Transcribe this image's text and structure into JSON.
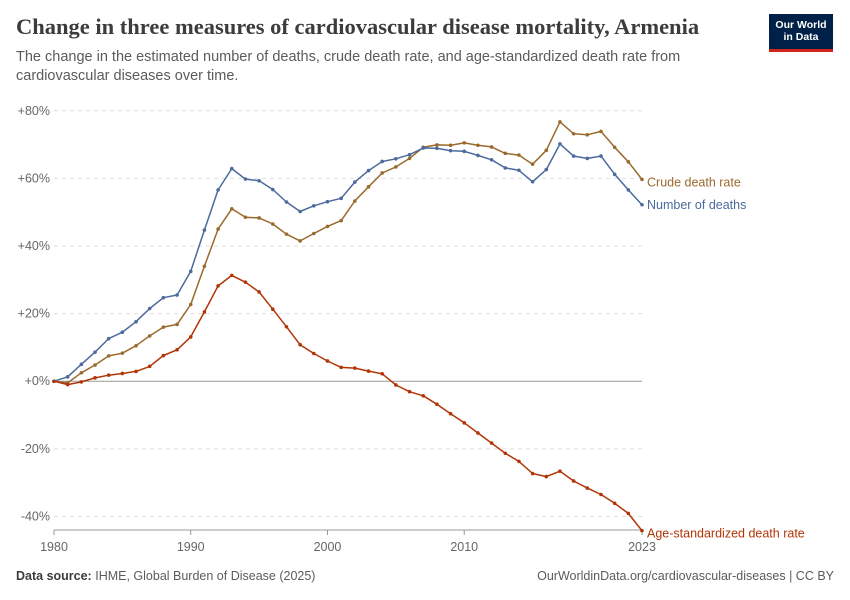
{
  "header": {
    "title": "Change in three measures of cardiovascular disease mortality, Armenia",
    "subtitle": "The change in the estimated number of deaths, crude death rate, and age-standardized death rate from cardiovascular diseases over time.",
    "logo_line1": "Our World",
    "logo_line2": "in Data"
  },
  "footer": {
    "source_label": "Data source:",
    "source_text": "IHME, Global Burden of Disease (2025)",
    "url_text": "OurWorldinData.org/cardiovascular-diseases | CC BY"
  },
  "colors": {
    "crude": "#9a6a2d",
    "deaths": "#4c6a9c",
    "age": "#b13507",
    "brand_bg": "#002147",
    "brand_accent": "#ce261e"
  },
  "chart_data": {
    "type": "line",
    "x": [
      1980,
      1981,
      1982,
      1983,
      1984,
      1985,
      1986,
      1987,
      1988,
      1989,
      1990,
      1991,
      1992,
      1993,
      1994,
      1995,
      1996,
      1997,
      1998,
      1999,
      2000,
      2001,
      2002,
      2003,
      2004,
      2005,
      2006,
      2007,
      2008,
      2009,
      2010,
      2011,
      2012,
      2013,
      2014,
      2015,
      2016,
      2017,
      2018,
      2019,
      2020,
      2021,
      2022,
      2023
    ],
    "x_ticks": [
      "1980",
      "1990",
      "2000",
      "2010",
      "2023"
    ],
    "y_ticks": [
      "+80%",
      "+60%",
      "+40%",
      "+20%",
      "+0%",
      "-20%",
      "-40%"
    ],
    "y_tick_values": [
      80,
      60,
      40,
      20,
      0,
      -20,
      -40
    ],
    "ylim": [
      -44,
      82
    ],
    "grid": true,
    "series": [
      {
        "name": "Crude death rate",
        "color": "#9a6a2d",
        "values": [
          0,
          -0.5,
          2.5,
          4.8,
          7.5,
          8.3,
          10.5,
          13.4,
          16,
          16.8,
          22.7,
          34,
          45,
          51,
          48.5,
          48.3,
          46.5,
          43.5,
          41.5,
          43.7,
          45.8,
          47.5,
          53.3,
          57.5,
          61.6,
          63.4,
          65.9,
          69.2,
          69.9,
          69.8,
          70.5,
          69.8,
          69.3,
          67.4,
          66.9,
          64.2,
          68.3,
          76.7,
          73.2,
          72.9,
          73.9,
          69.2,
          64.9,
          59.7
        ]
      },
      {
        "name": "Number of deaths",
        "color": "#4c6a9c",
        "values": [
          0,
          1.3,
          5,
          8.6,
          12.6,
          14.5,
          17.6,
          21.5,
          24.7,
          25.5,
          32.5,
          44.7,
          56.6,
          62.9,
          59.8,
          59.3,
          56.7,
          53,
          50.2,
          51.9,
          53.1,
          54.1,
          58.9,
          62.3,
          65,
          65.8,
          67,
          69,
          68.9,
          68.2,
          68,
          66.8,
          65.5,
          63.1,
          62.4,
          59,
          62.6,
          70.2,
          66.6,
          65.9,
          66.6,
          61.2,
          56.6,
          52.2
        ]
      },
      {
        "name": "Age-standardized death rate",
        "color": "#b13507",
        "values": [
          0,
          -1,
          -0.2,
          1,
          1.8,
          2.3,
          2.9,
          4.4,
          7.6,
          9.3,
          13.1,
          20.5,
          28.2,
          31.3,
          29.3,
          26.4,
          21.3,
          16.1,
          10.8,
          8.2,
          6,
          4.1,
          3.9,
          3,
          2.2,
          -1.1,
          -3.1,
          -4.3,
          -6.8,
          -9.6,
          -12.3,
          -15.3,
          -18.3,
          -21.3,
          -23.7,
          -27.3,
          -28.2,
          -26.6,
          -29.5,
          -31.6,
          -33.5,
          -36.1,
          -39.1,
          -44.2
        ]
      }
    ]
  }
}
